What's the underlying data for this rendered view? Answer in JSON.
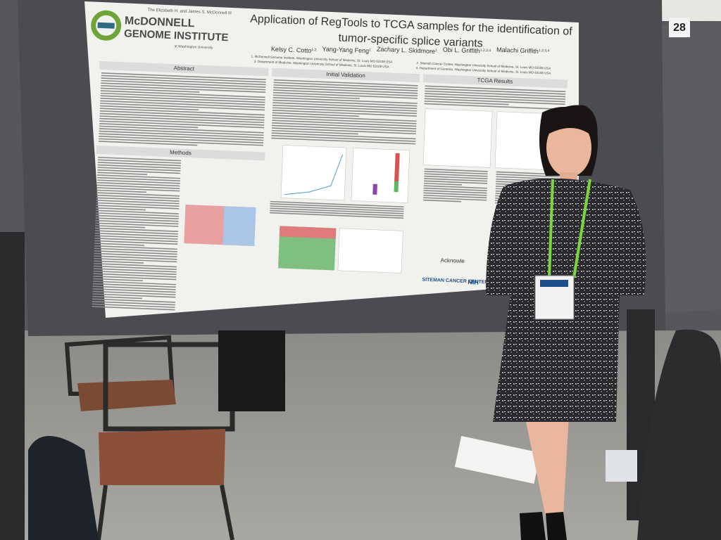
{
  "booth_number": "28",
  "poster": {
    "logo": {
      "line1": "The Elizabeth H. and James S. McDonnell III",
      "name_top": "McDONNELL",
      "name_bottom": "GENOME INSTITUTE",
      "line3": "at Washington University"
    },
    "title": [
      "Application of RegTools to TCGA samples for the identification of",
      "tumor-specific splice variants"
    ],
    "authors": [
      {
        "name": "Kelsy C. Cotto",
        "sup": "1,2"
      },
      {
        "name": "Yang-Yang Feng",
        "sup": "1"
      },
      {
        "name": "Zachary L. Skidmore",
        "sup": "1"
      },
      {
        "name": "Obi L. Griffith",
        "sup": "1,2,3,4"
      },
      {
        "name": "Malachi Griffith",
        "sup": "1,2,3,4"
      }
    ],
    "affiliations": [
      "1. McDonnell Genome Institute, Washington University School of Medicine, St. Louis MO 63108 USA",
      "2. Siteman Cancer Center, Washington University School of Medicine, St. Louis MO 63108 USA",
      "3. Department of Medicine, Washington University School of Medicine, St. Louis MO 63108 USA",
      "4. Department of Genetics, Washington University School of Medicine, St. Louis MO 63108 USA"
    ],
    "sections": {
      "abstract": "Abstract",
      "validation": "Initial Validation",
      "results": "TCGA Results",
      "methods": "Methods",
      "acknowledgements": "Acknowle"
    },
    "sponsors": [
      "SITEMAN CANCER CENTER",
      "NIH"
    ]
  }
}
